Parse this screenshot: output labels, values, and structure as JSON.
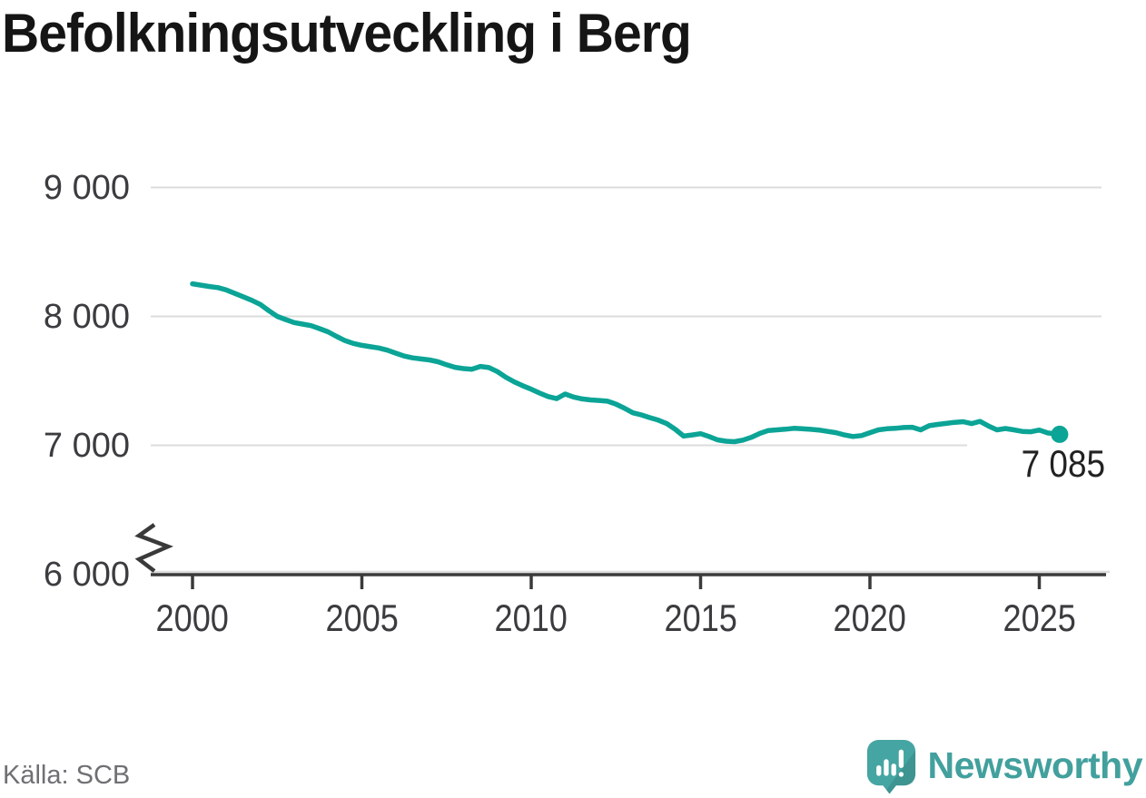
{
  "title": "Befolkningsutveckling i Berg",
  "source": "Källa: SCB",
  "branding": {
    "name": "Newsworthy"
  },
  "colors": {
    "line": "#0ba496",
    "grid": "#dcdcdc",
    "axis": "#3a3a3a",
    "tick_label": "#3c3c40",
    "title": "#151515",
    "end_label": "#222222",
    "source": "#6f6f74",
    "brand_text": "#42a09d",
    "brand_icon": "#45a5a2"
  },
  "chart_data": {
    "type": "line",
    "title": "Befolkningsutveckling i Berg",
    "series_name": "Befolkning i Berg",
    "xlabel": "",
    "ylabel": "",
    "grid": "horizontal",
    "legend": "none",
    "axis_break_at_bottom": true,
    "ylim": [
      6000,
      9000
    ],
    "xlim": [
      2000,
      2026
    ],
    "yticks": [
      {
        "value": 9000,
        "label": "9 000",
        "grid": true
      },
      {
        "value": 8000,
        "label": "8 000",
        "grid": true
      },
      {
        "value": 7000,
        "label": "7 000",
        "grid": true
      },
      {
        "value": 6000,
        "label": "6 000",
        "grid": false
      }
    ],
    "xticks": [
      {
        "value": 2000,
        "label": "2000"
      },
      {
        "value": 2005,
        "label": "2005"
      },
      {
        "value": 2010,
        "label": "2010"
      },
      {
        "value": 2015,
        "label": "2015"
      },
      {
        "value": 2020,
        "label": "2020"
      },
      {
        "value": 2025,
        "label": "2025"
      }
    ],
    "x": [
      2000.0,
      2000.25,
      2000.5,
      2000.75,
      2001.0,
      2001.25,
      2001.5,
      2001.75,
      2002.0,
      2002.25,
      2002.5,
      2002.75,
      2003.0,
      2003.25,
      2003.5,
      2003.75,
      2004.0,
      2004.25,
      2004.5,
      2004.75,
      2005.0,
      2005.25,
      2005.5,
      2005.75,
      2006.0,
      2006.25,
      2006.5,
      2006.75,
      2007.0,
      2007.25,
      2007.5,
      2007.75,
      2008.0,
      2008.25,
      2008.5,
      2008.75,
      2009.0,
      2009.25,
      2009.5,
      2009.75,
      2010.0,
      2010.25,
      2010.5,
      2010.75,
      2011.0,
      2011.25,
      2011.5,
      2011.75,
      2012.0,
      2012.25,
      2012.5,
      2012.75,
      2013.0,
      2013.25,
      2013.5,
      2013.75,
      2014.0,
      2014.25,
      2014.5,
      2014.75,
      2015.0,
      2015.25,
      2015.5,
      2015.75,
      2016.0,
      2016.25,
      2016.5,
      2016.75,
      2017.0,
      2017.25,
      2017.5,
      2017.75,
      2018.0,
      2018.25,
      2018.5,
      2018.75,
      2019.0,
      2019.25,
      2019.5,
      2019.75,
      2020.0,
      2020.25,
      2020.5,
      2020.75,
      2021.0,
      2021.25,
      2021.5,
      2021.75,
      2022.0,
      2022.25,
      2022.5,
      2022.75,
      2023.0,
      2023.25,
      2023.5,
      2023.75,
      2024.0,
      2024.25,
      2024.5,
      2024.75,
      2025.0,
      2025.25,
      2025.6
    ],
    "y": [
      8253,
      8242,
      8232,
      8223,
      8205,
      8178,
      8152,
      8125,
      8093,
      8045,
      8000,
      7975,
      7952,
      7940,
      7928,
      7905,
      7880,
      7845,
      7812,
      7790,
      7775,
      7765,
      7755,
      7738,
      7715,
      7692,
      7678,
      7670,
      7662,
      7648,
      7625,
      7605,
      7595,
      7590,
      7612,
      7603,
      7572,
      7528,
      7492,
      7462,
      7435,
      7405,
      7378,
      7362,
      7398,
      7375,
      7360,
      7352,
      7348,
      7342,
      7320,
      7288,
      7252,
      7236,
      7215,
      7195,
      7168,
      7125,
      7072,
      7080,
      7090,
      7068,
      7042,
      7032,
      7028,
      7040,
      7062,
      7092,
      7115,
      7120,
      7125,
      7132,
      7128,
      7124,
      7118,
      7108,
      7098,
      7080,
      7068,
      7075,
      7098,
      7120,
      7128,
      7132,
      7138,
      7140,
      7120,
      7152,
      7162,
      7170,
      7178,
      7183,
      7168,
      7186,
      7150,
      7120,
      7130,
      7120,
      7108,
      7105,
      7118,
      7096,
      7085
    ],
    "last_point": {
      "x": 2025.6,
      "y": 7085,
      "label": "7 085"
    }
  }
}
